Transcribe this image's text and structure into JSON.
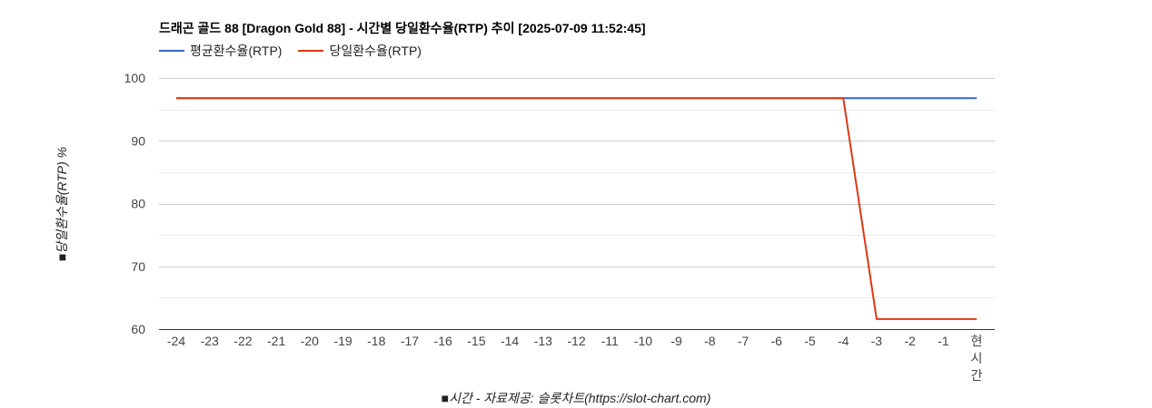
{
  "chart_data": {
    "type": "line",
    "title": "드래곤 골드 88 [Dragon Gold 88] - 시간별 당일환수율(RTP) 추이 [2025-07-09 11:52:45]",
    "xlabel": "■시간 - 자료제공: 슬롯차트(https://slot-chart.com)",
    "ylabel": "■당일환수율(RTP) %",
    "categories": [
      "-24",
      "-23",
      "-22",
      "-21",
      "-20",
      "-19",
      "-18",
      "-17",
      "-16",
      "-15",
      "-14",
      "-13",
      "-12",
      "-11",
      "-10",
      "-9",
      "-8",
      "-7",
      "-6",
      "-5",
      "-4",
      "-3",
      "-2",
      "-1",
      "현시간"
    ],
    "ylim": [
      60,
      100
    ],
    "yticks": [
      60,
      70,
      80,
      90,
      100
    ],
    "grid": true,
    "legend_position": "top-left",
    "series": [
      {
        "name": "평균환수율(RTP)",
        "color": "#3366cc",
        "values": [
          96.8,
          96.8,
          96.8,
          96.8,
          96.8,
          96.8,
          96.8,
          96.8,
          96.8,
          96.8,
          96.8,
          96.8,
          96.8,
          96.8,
          96.8,
          96.8,
          96.8,
          96.8,
          96.8,
          96.8,
          96.8,
          96.8,
          96.8,
          96.8,
          96.8
        ]
      },
      {
        "name": "당일환수율(RTP)",
        "color": "#dc3912",
        "values": [
          96.8,
          96.8,
          96.8,
          96.8,
          96.8,
          96.8,
          96.8,
          96.8,
          96.8,
          96.8,
          96.8,
          96.8,
          96.8,
          96.8,
          96.8,
          96.8,
          96.8,
          96.8,
          96.8,
          96.8,
          96.8,
          61.6,
          61.6,
          61.6,
          61.6
        ]
      }
    ]
  }
}
